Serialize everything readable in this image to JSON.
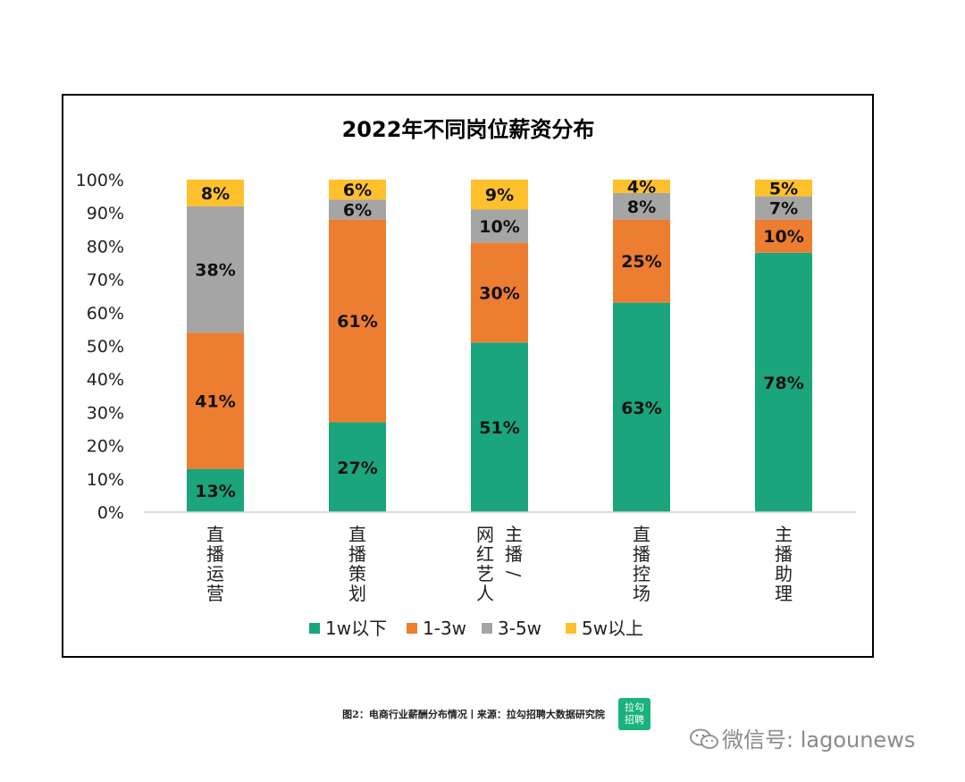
{
  "chart_data": {
    "type": "bar",
    "stacked": true,
    "title": "2022年不同岗位薪资分布",
    "categories": [
      "直播运营",
      "直播策划",
      "网红艺人/主播",
      "直播控场",
      "主播助理"
    ],
    "category_lines": [
      [
        "直播运营"
      ],
      [
        "直播策划"
      ],
      [
        "网红艺人",
        "主播/"
      ],
      [
        "直播控场"
      ],
      [
        "主播助理"
      ]
    ],
    "series": [
      {
        "name": "1w以下",
        "values": [
          13,
          27,
          51,
          63,
          78
        ],
        "color": "#1aa57c"
      },
      {
        "name": "1-3w",
        "values": [
          41,
          61,
          30,
          25,
          10
        ],
        "color": "#ed7d31"
      },
      {
        "name": "3-5w",
        "values": [
          38,
          6,
          10,
          8,
          7
        ],
        "color": "#a5a5a5"
      },
      {
        "name": "5w以上",
        "values": [
          8,
          6,
          9,
          4,
          5
        ],
        "color": "#ffc12b"
      }
    ],
    "y_ticks": [
      "0%",
      "10%",
      "20%",
      "30%",
      "40%",
      "50%",
      "60%",
      "70%",
      "80%",
      "90%",
      "100%"
    ],
    "ylim": [
      0,
      100
    ],
    "grid": false,
    "legend": "bottom"
  },
  "caption": "图2：电商行业薪酬分布情况丨来源：拉勾招聘大数据研究院",
  "logo_text": "拉勾招聘",
  "watermark": "微信号: lagounews"
}
